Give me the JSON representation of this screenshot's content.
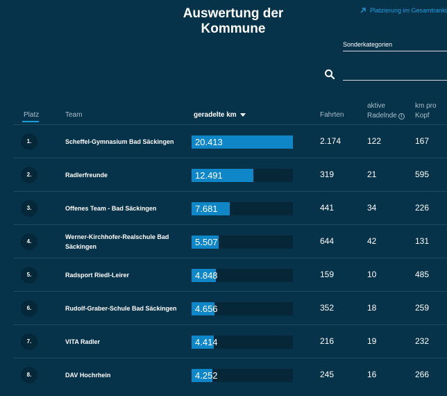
{
  "page": {
    "title": "Auswertung der Kommune"
  },
  "link": {
    "label": "Platzierung im Gesamtranking"
  },
  "filter": {
    "select_value": "Sonderkategorien"
  },
  "search": {
    "placeholder": "",
    "value": ""
  },
  "columns": {
    "platz": "Platz",
    "team": "Team",
    "km": "geradelte km",
    "fahrten": "Fahrten",
    "aktive_line1": "aktive",
    "aktive_line2": "Radelnde",
    "kopf_line1": "km pro",
    "kopf_line2": "Kopf"
  },
  "colors": {
    "background": "#07334a",
    "accent": "#0f86c7",
    "bar_track": "#052738"
  },
  "rows": [
    {
      "rank": "1.",
      "team": "Scheffel-Gymnasium Bad Säckingen",
      "km": "20.413",
      "km_value": 20413,
      "fahrten": "2.174",
      "aktive": "122",
      "kopf": "167"
    },
    {
      "rank": "2.",
      "team": "Radlerfreunde",
      "km": "12.491",
      "km_value": 12491,
      "fahrten": "319",
      "aktive": "21",
      "kopf": "595"
    },
    {
      "rank": "3.",
      "team": "Offenes Team - Bad Säckingen",
      "km": "7.681",
      "km_value": 7681,
      "fahrten": "441",
      "aktive": "34",
      "kopf": "226"
    },
    {
      "rank": "4.",
      "team": "Werner-Kirchhofer-Realschule Bad Säckingen",
      "km": "5.507",
      "km_value": 5507,
      "fahrten": "644",
      "aktive": "42",
      "kopf": "131"
    },
    {
      "rank": "5.",
      "team": "Radsport Riedl-Leirer",
      "km": "4.848",
      "km_value": 4848,
      "fahrten": "159",
      "aktive": "10",
      "kopf": "485"
    },
    {
      "rank": "6.",
      "team": "Rudolf-Graber-Schule Bad Säckingen",
      "km": "4.656",
      "km_value": 4656,
      "fahrten": "352",
      "aktive": "18",
      "kopf": "259"
    },
    {
      "rank": "7.",
      "team": "VITA Radler",
      "km": "4.414",
      "km_value": 4414,
      "fahrten": "216",
      "aktive": "19",
      "kopf": "232"
    },
    {
      "rank": "8.",
      "team": "DAV Hochrhein",
      "km": "4.252",
      "km_value": 4252,
      "fahrten": "245",
      "aktive": "16",
      "kopf": "266"
    }
  ]
}
